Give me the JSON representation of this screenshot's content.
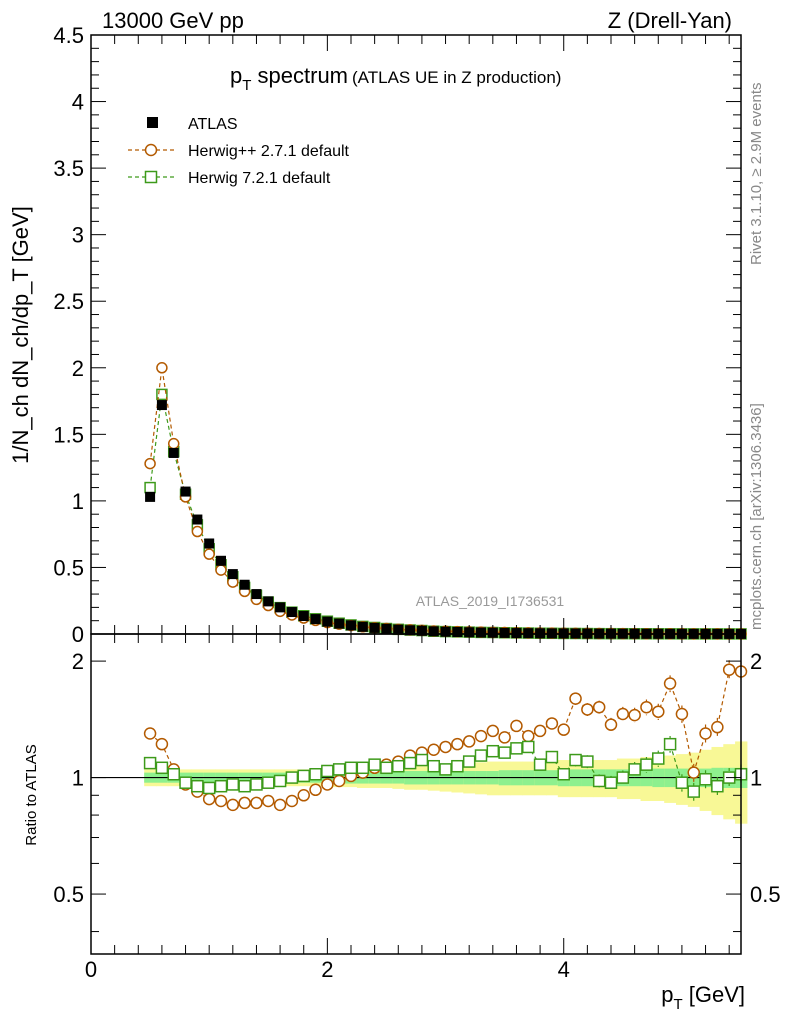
{
  "header": {
    "energy_label": "13000 GeV pp",
    "process_label": "Z (Drell-Yan)"
  },
  "side_labels": {
    "rivet": "Rivet 3.1.10, ≥ 2.9M events",
    "mcplots": "mcplots.cern.ch [arXiv:1306.3436]"
  },
  "chart_data": {
    "type": "line",
    "title": "p_T spectrum (ATLAS UE in Z production)",
    "title_main": "p",
    "title_sub": "T",
    "title_rest": " spectrum",
    "title_small": "(ATLAS UE in Z production)",
    "watermark": "ATLAS_2019_I1736531",
    "xlabel": "p_T [GeV]",
    "xlabel_main": "p",
    "xlabel_sub": "T",
    "xlabel_unit": " [GeV]",
    "ylabel": "1/N_ch dN_ch/dp_T [GeV]",
    "ratio_ylabel": "Ratio to ATLAS",
    "xlim": [
      0,
      5.5
    ],
    "ylim": [
      0,
      4.5
    ],
    "ratio_ylim": [
      0.35,
      2.35
    ],
    "x_ticks": [
      "0",
      "2",
      "4"
    ],
    "y_ticks": [
      "0",
      "0.5",
      "1",
      "1.5",
      "2",
      "2.5",
      "3",
      "3.5",
      "4",
      "4.5"
    ],
    "ratio_ticks": [
      "0.5",
      "1",
      "2"
    ],
    "colors": {
      "atlas": "#000000",
      "herwigpp": "#b35a00",
      "herwig7": "#3d9a1a",
      "band_inner": "#8ef08e",
      "band_outer": "#f8f896"
    },
    "x": [
      0.5,
      0.6,
      0.7,
      0.8,
      0.9,
      1.0,
      1.1,
      1.2,
      1.3,
      1.4,
      1.5,
      1.6,
      1.7,
      1.8,
      1.9,
      2.0,
      2.1,
      2.2,
      2.3,
      2.4,
      2.5,
      2.6,
      2.7,
      2.8,
      2.9,
      3.0,
      3.1,
      3.2,
      3.3,
      3.4,
      3.5,
      3.6,
      3.7,
      3.8,
      3.9,
      4.0,
      4.1,
      4.2,
      4.3,
      4.4,
      4.5,
      4.6,
      4.7,
      4.8,
      4.9,
      5.0,
      5.1,
      5.2,
      5.3,
      5.4,
      5.5
    ],
    "series": [
      {
        "name": "ATLAS",
        "marker": "filled-square",
        "values": [
          1.03,
          1.72,
          1.36,
          1.07,
          0.86,
          0.68,
          0.55,
          0.45,
          0.37,
          0.3,
          0.245,
          0.2,
          0.165,
          0.135,
          0.112,
          0.093,
          0.078,
          0.065,
          0.054,
          0.046,
          0.039,
          0.033,
          0.028,
          0.024,
          0.02,
          0.017,
          0.015,
          0.013,
          0.011,
          0.0095,
          0.0082,
          0.0071,
          0.0062,
          0.0054,
          0.0047,
          0.0041,
          0.0036,
          0.0031,
          0.0027,
          0.0024,
          0.0021,
          0.0018,
          0.0016,
          0.0014,
          0.0012,
          0.0011,
          0.00095,
          0.00083,
          0.00073,
          0.00064,
          0.00056
        ],
        "ratio": [
          1,
          1,
          1,
          1,
          1,
          1,
          1,
          1,
          1,
          1,
          1,
          1,
          1,
          1,
          1,
          1,
          1,
          1,
          1,
          1,
          1,
          1,
          1,
          1,
          1,
          1,
          1,
          1,
          1,
          1,
          1,
          1,
          1,
          1,
          1,
          1,
          1,
          1,
          1,
          1,
          1,
          1,
          1,
          1,
          1,
          1,
          1,
          1,
          1,
          1,
          1
        ],
        "band_inner": [
          0.03,
          0.03,
          0.03,
          0.03,
          0.03,
          0.03,
          0.03,
          0.03,
          0.03,
          0.03,
          0.03,
          0.03,
          0.03,
          0.03,
          0.03,
          0.03,
          0.035,
          0.035,
          0.035,
          0.035,
          0.035,
          0.035,
          0.04,
          0.04,
          0.04,
          0.04,
          0.04,
          0.04,
          0.04,
          0.04,
          0.045,
          0.045,
          0.045,
          0.045,
          0.045,
          0.05,
          0.05,
          0.05,
          0.05,
          0.05,
          0.05,
          0.05,
          0.05,
          0.055,
          0.055,
          0.055,
          0.055,
          0.055,
          0.06,
          0.06,
          0.06
        ],
        "band_outer": [
          0.05,
          0.05,
          0.05,
          0.05,
          0.05,
          0.05,
          0.05,
          0.05,
          0.05,
          0.05,
          0.05,
          0.05,
          0.05,
          0.05,
          0.05,
          0.05,
          0.055,
          0.055,
          0.06,
          0.06,
          0.06,
          0.065,
          0.07,
          0.07,
          0.075,
          0.08,
          0.085,
          0.09,
          0.095,
          0.1,
          0.1,
          0.1,
          0.1,
          0.1,
          0.1,
          0.11,
          0.11,
          0.11,
          0.11,
          0.11,
          0.12,
          0.12,
          0.13,
          0.13,
          0.14,
          0.15,
          0.16,
          0.18,
          0.2,
          0.22,
          0.24
        ]
      },
      {
        "name": "Herwig++ 2.7.1 default",
        "marker": "open-circle",
        "values": [
          1.28,
          2.0,
          1.43,
          1.03,
          0.77,
          0.6,
          0.48,
          0.39,
          0.32,
          0.26,
          0.214,
          0.17,
          0.143,
          0.12,
          0.102,
          0.086,
          0.074,
          0.063,
          0.054,
          0.047,
          0.041,
          0.035,
          0.031,
          0.027,
          0.023,
          0.021,
          0.018,
          0.016,
          0.014,
          0.012,
          0.011,
          0.0093,
          0.0081,
          0.0071,
          0.0062,
          0.0055,
          0.0049,
          0.0043,
          0.0037,
          0.0033,
          0.0029,
          0.0026,
          0.0023,
          0.002,
          0.0018,
          0.0016,
          0.0014,
          0.0012,
          0.0011,
          0.00095,
          0.00083
        ],
        "ratio": [
          1.3,
          1.22,
          1.05,
          0.96,
          0.92,
          0.88,
          0.87,
          0.85,
          0.86,
          0.86,
          0.87,
          0.85,
          0.87,
          0.9,
          0.93,
          0.96,
          0.98,
          1.01,
          1.03,
          1.06,
          1.08,
          1.1,
          1.14,
          1.16,
          1.18,
          1.2,
          1.22,
          1.24,
          1.28,
          1.32,
          1.27,
          1.36,
          1.28,
          1.32,
          1.38,
          1.33,
          1.6,
          1.5,
          1.52,
          1.37,
          1.46,
          1.45,
          1.52,
          1.48,
          1.75,
          1.46,
          1.03,
          1.3,
          1.35,
          1.9,
          1.88
        ]
      },
      {
        "name": "Herwig 7.2.1 default",
        "marker": "open-square",
        "values": [
          1.1,
          1.8,
          1.37,
          1.05,
          0.82,
          0.64,
          0.52,
          0.43,
          0.35,
          0.29,
          0.24,
          0.198,
          0.164,
          0.137,
          0.114,
          0.096,
          0.081,
          0.068,
          0.057,
          0.049,
          0.041,
          0.035,
          0.03,
          0.026,
          0.021,
          0.018,
          0.016,
          0.014,
          0.012,
          0.011,
          0.0093,
          0.0081,
          0.0071,
          0.0058,
          0.0054,
          0.0042,
          0.004,
          0.0034,
          0.0027,
          0.0023,
          0.0021,
          0.0019,
          0.0017,
          0.0015,
          0.0014,
          0.0011,
          0.00088,
          0.00083,
          0.00072,
          0.00064,
          0.00057
        ],
        "ratio": [
          1.09,
          1.06,
          1.02,
          0.97,
          0.95,
          0.94,
          0.95,
          0.96,
          0.95,
          0.96,
          0.97,
          0.98,
          1.0,
          1.01,
          1.02,
          1.04,
          1.05,
          1.06,
          1.06,
          1.08,
          1.06,
          1.07,
          1.09,
          1.11,
          1.07,
          1.05,
          1.07,
          1.1,
          1.14,
          1.17,
          1.16,
          1.19,
          1.2,
          1.08,
          1.13,
          1.02,
          1.11,
          1.1,
          0.98,
          0.97,
          1.0,
          1.05,
          1.08,
          1.12,
          1.22,
          0.97,
          0.92,
          0.99,
          0.95,
          1.0,
          1.02
        ]
      }
    ]
  }
}
